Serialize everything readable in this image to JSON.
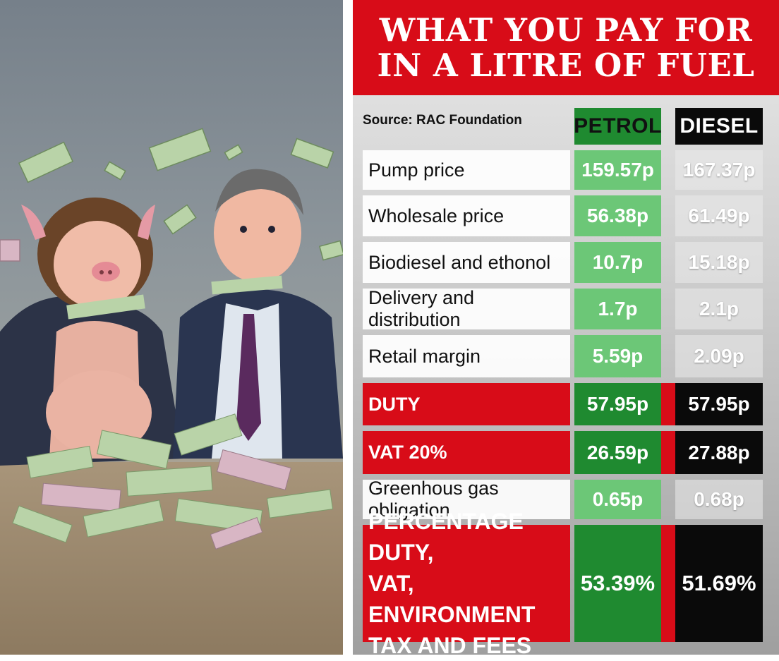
{
  "title": "WHAT YOU PAY FOR\nIN A LITRE OF FUEL",
  "source": "Source: RAC Foundation",
  "columns": {
    "petrol": "PETROL",
    "diesel": "DIESEL"
  },
  "rows": [
    {
      "label": "Pump price",
      "petrol": "159.57p",
      "diesel": "167.37p",
      "style": "light"
    },
    {
      "label": "Wholesale price",
      "petrol": "56.38p",
      "diesel": "61.49p",
      "style": "light"
    },
    {
      "label": "Biodiesel and ethonol",
      "petrol": "10.7p",
      "diesel": "15.18p",
      "style": "light"
    },
    {
      "label": "Delivery and distribution",
      "petrol": "1.7p",
      "diesel": "2.1p",
      "style": "light"
    },
    {
      "label": "Retail margin",
      "petrol": "5.59p",
      "diesel": "2.09p",
      "style": "light"
    },
    {
      "label": "DUTY",
      "petrol": "57.95p",
      "diesel": "57.95p",
      "style": "red"
    },
    {
      "label": "VAT 20%",
      "petrol": "26.59p",
      "diesel": "27.88p",
      "style": "red"
    },
    {
      "label": "Greenhous gas obligation",
      "petrol": "0.65p",
      "diesel": "0.68p",
      "style": "light"
    },
    {
      "label": "PERCENTAGE DUTY,\nVAT, ENVIRONMENT\nTAX AND FEES",
      "petrol": "53.39%",
      "diesel": "51.69%",
      "style": "red"
    }
  ],
  "colors": {
    "red": "#d80c18",
    "green": "#1f8a30",
    "light_green": "#6cc777",
    "black": "#0a0a0a"
  }
}
